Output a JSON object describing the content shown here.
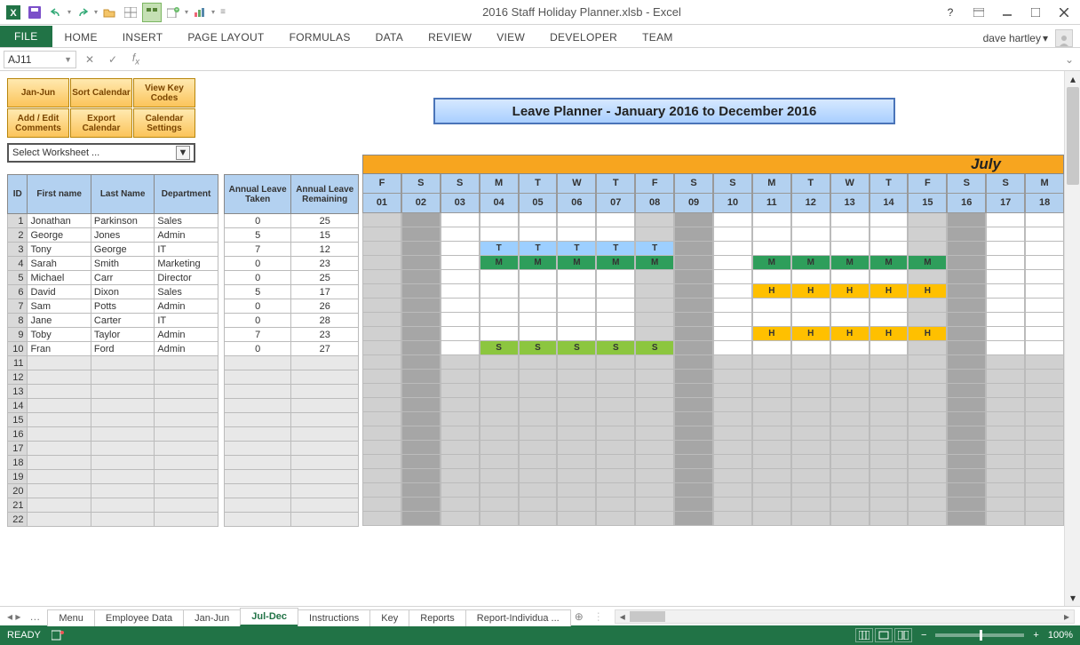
{
  "app": {
    "title": "2016 Staff Holiday Planner.xlsb - Excel",
    "user": "dave hartley"
  },
  "qat_icons": [
    "excel",
    "save",
    "undo",
    "redo",
    "open",
    "table",
    "layout",
    "insert-ws",
    "chart"
  ],
  "ribbon_tabs": [
    "FILE",
    "HOME",
    "INSERT",
    "PAGE LAYOUT",
    "FORMULAS",
    "DATA",
    "REVIEW",
    "VIEW",
    "DEVELOPER",
    "TEAM"
  ],
  "name_box": "AJ11",
  "formula": "",
  "panel_buttons": [
    "Jan-Jun",
    "Sort Calendar",
    "View Key Codes",
    "Add / Edit Comments",
    "Export Calendar",
    "Calendar Settings"
  ],
  "worksheet_selector": "Select Worksheet ...",
  "planner_title": "Leave Planner - January 2016 to December 2016",
  "month_label": "July",
  "day_letters": [
    "F",
    "S",
    "S",
    "M",
    "T",
    "W",
    "T",
    "F",
    "S",
    "S",
    "M",
    "T",
    "W",
    "T",
    "F",
    "S",
    "S",
    "M"
  ],
  "day_nums": [
    "01",
    "02",
    "03",
    "04",
    "05",
    "06",
    "07",
    "08",
    "09",
    "10",
    "11",
    "12",
    "13",
    "14",
    "15",
    "16",
    "17",
    "18"
  ],
  "weekend_cols": [
    1,
    2,
    8,
    9,
    15,
    16
  ],
  "dark_cols": [
    2,
    9,
    16
  ],
  "staff_headers": [
    "ID",
    "First name",
    "Last Name",
    "Department",
    "Annual Leave Taken",
    "Annual Leave Remaining"
  ],
  "staff": [
    {
      "id": 1,
      "fn": "Jonathan",
      "ln": "Parkinson",
      "dept": "Sales",
      "taken": 0,
      "rem": 25,
      "leave": {}
    },
    {
      "id": 2,
      "fn": "George",
      "ln": "Jones",
      "dept": "Admin",
      "taken": 5,
      "rem": 15,
      "leave": {}
    },
    {
      "id": 3,
      "fn": "Tony",
      "ln": "George",
      "dept": "IT",
      "taken": 7,
      "rem": 12,
      "leave": {
        "04": "T",
        "05": "T",
        "06": "T",
        "07": "T",
        "08": "T"
      }
    },
    {
      "id": 4,
      "fn": "Sarah",
      "ln": "Smith",
      "dept": "Marketing",
      "taken": 0,
      "rem": 23,
      "leave": {
        "04": "M",
        "05": "M",
        "06": "M",
        "07": "M",
        "08": "M",
        "11": "M",
        "12": "M",
        "13": "M",
        "14": "M",
        "15": "M"
      }
    },
    {
      "id": 5,
      "fn": "Michael",
      "ln": "Carr",
      "dept": "Director",
      "taken": 0,
      "rem": 25,
      "leave": {}
    },
    {
      "id": 6,
      "fn": "David",
      "ln": "Dixon",
      "dept": "Sales",
      "taken": 5,
      "rem": 17,
      "leave": {
        "11": "H",
        "12": "H",
        "13": "H",
        "14": "H",
        "15": "H"
      }
    },
    {
      "id": 7,
      "fn": "Sam",
      "ln": "Potts",
      "dept": "Admin",
      "taken": 0,
      "rem": 26,
      "leave": {}
    },
    {
      "id": 8,
      "fn": "Jane",
      "ln": "Carter",
      "dept": "IT",
      "taken": 0,
      "rem": 28,
      "leave": {}
    },
    {
      "id": 9,
      "fn": "Toby",
      "ln": "Taylor",
      "dept": "Admin",
      "taken": 7,
      "rem": 23,
      "leave": {
        "11": "H",
        "12": "H",
        "13": "H",
        "14": "H",
        "15": "H"
      }
    },
    {
      "id": 10,
      "fn": "Fran",
      "ln": "Ford",
      "dept": "Admin",
      "taken": 0,
      "rem": 27,
      "leave": {
        "04": "S",
        "05": "S",
        "06": "S",
        "07": "S",
        "08": "S"
      }
    }
  ],
  "empty_rows": [
    11,
    12,
    13,
    14,
    15,
    16,
    17,
    18,
    19,
    20,
    21,
    22
  ],
  "sheet_tabs": [
    "Menu",
    "Employee Data",
    "Jan-Jun",
    "Jul-Dec",
    "Instructions",
    "Key",
    "Reports",
    "Report-Individua ..."
  ],
  "active_tab": "Jul-Dec",
  "status_text": "READY",
  "zoom": "100%",
  "colors": {
    "header_blue": "#b3d1f0",
    "orange": "#f7a51f",
    "T": "#9dcfff",
    "M": "#2e9e5b",
    "S": "#8cc63f",
    "H": "#ffc000",
    "btn_grad_top": "#ffe9b0",
    "btn_grad_bot": "#fbc45a",
    "excel_green": "#217346"
  }
}
